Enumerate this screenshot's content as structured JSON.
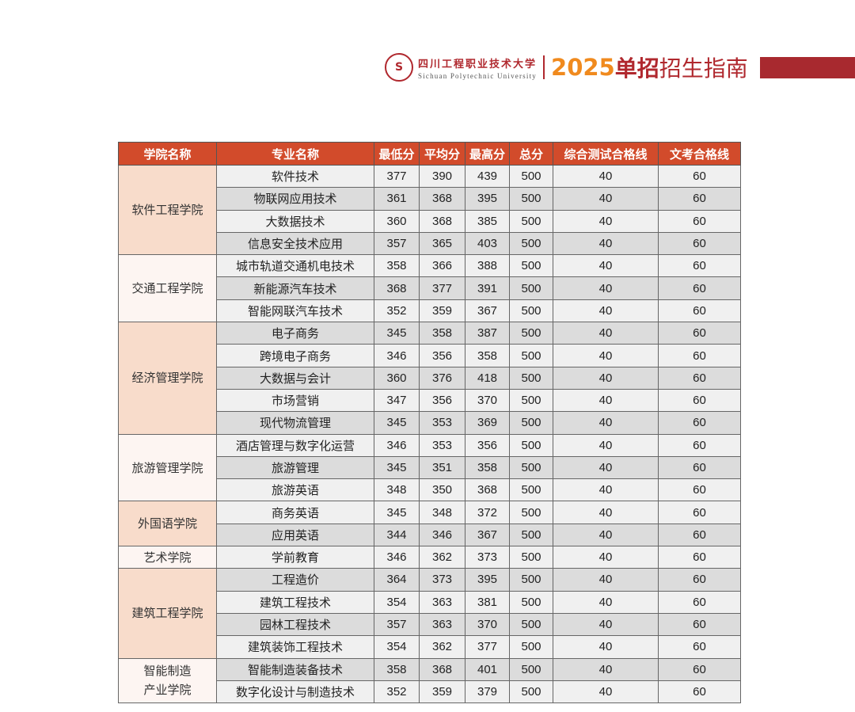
{
  "header": {
    "logo_text": "S",
    "school_cn": "四川工程职业技术大学",
    "school_en": "Sichuan Polytechnic University",
    "year": "2025",
    "title_bold": "单招",
    "title_rest": "招生指南",
    "accent": "#b0282e",
    "year_color": "#f08a1e"
  },
  "table": {
    "columns": [
      "学院名称",
      "专业名称",
      "最低分",
      "平均分",
      "最高分",
      "总分",
      "综合测试合格线",
      "文考合格线"
    ],
    "colleges": [
      {
        "name": "软件工程学院",
        "rows": [
          [
            "软件技术",
            "377",
            "390",
            "439",
            "500",
            "40",
            "60"
          ],
          [
            "物联网应用技术",
            "361",
            "368",
            "395",
            "500",
            "40",
            "60"
          ],
          [
            "大数据技术",
            "360",
            "368",
            "385",
            "500",
            "40",
            "60"
          ],
          [
            "信息安全技术应用",
            "357",
            "365",
            "403",
            "500",
            "40",
            "60"
          ]
        ]
      },
      {
        "name": "交通工程学院",
        "rows": [
          [
            "城市轨道交通机电技术",
            "358",
            "366",
            "388",
            "500",
            "40",
            "60"
          ],
          [
            "新能源汽车技术",
            "368",
            "377",
            "391",
            "500",
            "40",
            "60"
          ],
          [
            "智能网联汽车技术",
            "352",
            "359",
            "367",
            "500",
            "40",
            "60"
          ]
        ]
      },
      {
        "name": "经济管理学院",
        "rows": [
          [
            "电子商务",
            "345",
            "358",
            "387",
            "500",
            "40",
            "60"
          ],
          [
            "跨境电子商务",
            "346",
            "356",
            "358",
            "500",
            "40",
            "60"
          ],
          [
            "大数据与会计",
            "360",
            "376",
            "418",
            "500",
            "40",
            "60"
          ],
          [
            "市场营销",
            "347",
            "356",
            "370",
            "500",
            "40",
            "60"
          ],
          [
            "现代物流管理",
            "345",
            "353",
            "369",
            "500",
            "40",
            "60"
          ]
        ]
      },
      {
        "name": "旅游管理学院",
        "rows": [
          [
            "酒店管理与数字化运营",
            "346",
            "353",
            "356",
            "500",
            "40",
            "60"
          ],
          [
            "旅游管理",
            "345",
            "351",
            "358",
            "500",
            "40",
            "60"
          ],
          [
            "旅游英语",
            "348",
            "350",
            "368",
            "500",
            "40",
            "60"
          ]
        ]
      },
      {
        "name": "外国语学院",
        "rows": [
          [
            "商务英语",
            "345",
            "348",
            "372",
            "500",
            "40",
            "60"
          ],
          [
            "应用英语",
            "344",
            "346",
            "367",
            "500",
            "40",
            "60"
          ]
        ]
      },
      {
        "name": "艺术学院",
        "rows": [
          [
            "学前教育",
            "346",
            "362",
            "373",
            "500",
            "40",
            "60"
          ]
        ]
      },
      {
        "name": "建筑工程学院",
        "rows": [
          [
            "工程造价",
            "364",
            "373",
            "395",
            "500",
            "40",
            "60"
          ],
          [
            "建筑工程技术",
            "354",
            "363",
            "381",
            "500",
            "40",
            "60"
          ],
          [
            "园林工程技术",
            "357",
            "363",
            "370",
            "500",
            "40",
            "60"
          ],
          [
            "建筑装饰工程技术",
            "354",
            "362",
            "377",
            "500",
            "40",
            "60"
          ]
        ]
      },
      {
        "name": "智能制造\n产业学院",
        "rows": [
          [
            "智能制造装备技术",
            "358",
            "368",
            "401",
            "500",
            "40",
            "60"
          ],
          [
            "数字化设计与制造技术",
            "352",
            "359",
            "379",
            "500",
            "40",
            "60"
          ]
        ]
      }
    ]
  }
}
